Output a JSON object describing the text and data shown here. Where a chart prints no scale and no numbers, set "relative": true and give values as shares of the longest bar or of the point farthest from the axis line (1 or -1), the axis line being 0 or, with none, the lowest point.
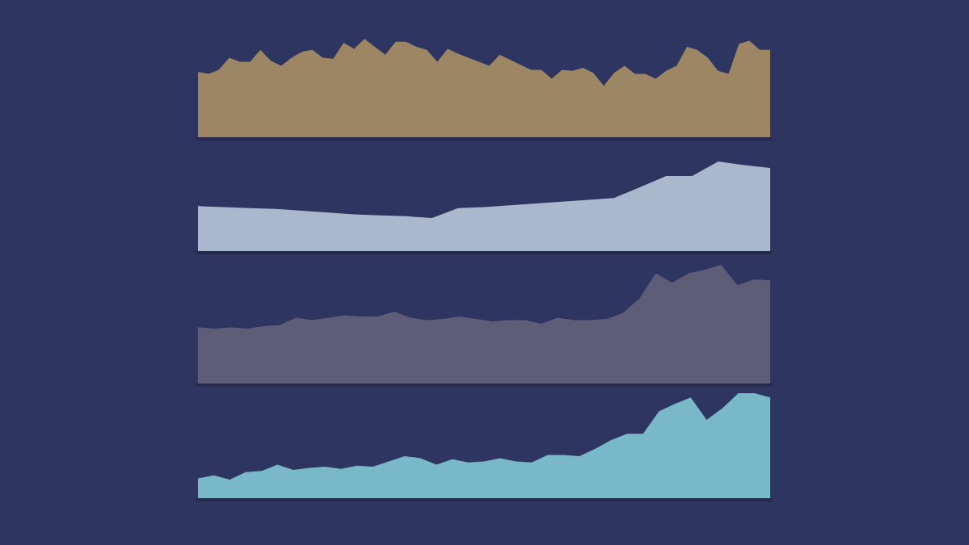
{
  "chart_data": [
    {
      "type": "area",
      "relative": true,
      "color": "#9c8663",
      "categories": [
        null,
        null,
        null,
        null,
        null,
        null,
        null,
        null,
        null,
        null,
        null,
        null,
        null,
        null,
        null,
        null,
        null,
        null,
        null,
        null,
        null,
        null,
        null,
        null,
        null,
        null,
        null,
        null,
        null,
        null,
        null,
        null,
        null,
        null,
        null,
        null,
        null,
        null,
        null,
        null,
        null,
        null,
        null,
        null,
        null,
        null,
        null,
        null,
        null,
        null,
        null,
        null,
        null,
        null,
        null,
        null
      ],
      "values": [
        0.67,
        0.65,
        0.69,
        0.81,
        0.77,
        0.77,
        0.89,
        0.78,
        0.73,
        0.81,
        0.87,
        0.89,
        0.81,
        0.8,
        0.96,
        0.9,
        1,
        0.92,
        0.84,
        0.97,
        0.97,
        0.92,
        0.89,
        0.77,
        0.9,
        0.85,
        0.81,
        0.77,
        0.73,
        0.84,
        0.79,
        0.74,
        0.69,
        0.69,
        0.6,
        0.69,
        0.68,
        0.71,
        0.66,
        0.53,
        0.66,
        0.73,
        0.65,
        0.65,
        0.6,
        0.68,
        0.73,
        0.92,
        0.89,
        0.81,
        0.68,
        0.65,
        0.95,
        0.98,
        0.89,
        0.89
      ]
    },
    {
      "type": "area",
      "relative": true,
      "color": "#a9b8cc",
      "categories": [
        null,
        null,
        null,
        null,
        null,
        null,
        null,
        null,
        null,
        null,
        null,
        null,
        null,
        null,
        null,
        null,
        null,
        null,
        null,
        null,
        null,
        null,
        null
      ],
      "values": [
        0.51,
        0.5,
        0.49,
        0.48,
        0.46,
        0.44,
        0.42,
        0.41,
        0.4,
        0.38,
        0.49,
        0.5,
        0.52,
        0.54,
        0.56,
        0.58,
        0.6,
        0.72,
        0.84,
        0.84,
        1,
        0.96,
        0.93
      ]
    },
    {
      "type": "area",
      "relative": true,
      "color": "#5e5d78",
      "categories": [
        null,
        null,
        null,
        null,
        null,
        null,
        null,
        null,
        null,
        null,
        null,
        null,
        null,
        null,
        null,
        null,
        null,
        null,
        null,
        null,
        null,
        null,
        null,
        null,
        null,
        null,
        null,
        null,
        null,
        null,
        null,
        null,
        null,
        null,
        null,
        null
      ],
      "values": [
        0.48,
        0.47,
        0.48,
        0.47,
        0.49,
        0.5,
        0.56,
        0.54,
        0.56,
        0.58,
        0.57,
        0.57,
        0.61,
        0.56,
        0.54,
        0.55,
        0.57,
        0.55,
        0.53,
        0.54,
        0.54,
        0.51,
        0.56,
        0.54,
        0.54,
        0.55,
        0.6,
        0.72,
        0.93,
        0.85,
        0.93,
        0.96,
        1,
        0.83,
        0.88,
        0.87
      ]
    },
    {
      "type": "area",
      "relative": true,
      "color": "#78b8c8",
      "categories": [
        null,
        null,
        null,
        null,
        null,
        null,
        null,
        null,
        null,
        null,
        null,
        null,
        null,
        null,
        null,
        null,
        null,
        null,
        null,
        null,
        null,
        null,
        null,
        null,
        null,
        null,
        null,
        null,
        null,
        null,
        null,
        null,
        null,
        null,
        null,
        null,
        null
      ],
      "values": [
        0.2,
        0.23,
        0.19,
        0.26,
        0.27,
        0.33,
        0.28,
        0.3,
        0.31,
        0.29,
        0.32,
        0.31,
        0.36,
        0.41,
        0.39,
        0.33,
        0.38,
        0.35,
        0.36,
        0.39,
        0.36,
        0.35,
        0.42,
        0.42,
        0.41,
        0.48,
        0.56,
        0.62,
        0.62,
        0.83,
        0.9,
        0.96,
        0.75,
        0.86,
        1,
        1,
        0.96
      ]
    }
  ]
}
